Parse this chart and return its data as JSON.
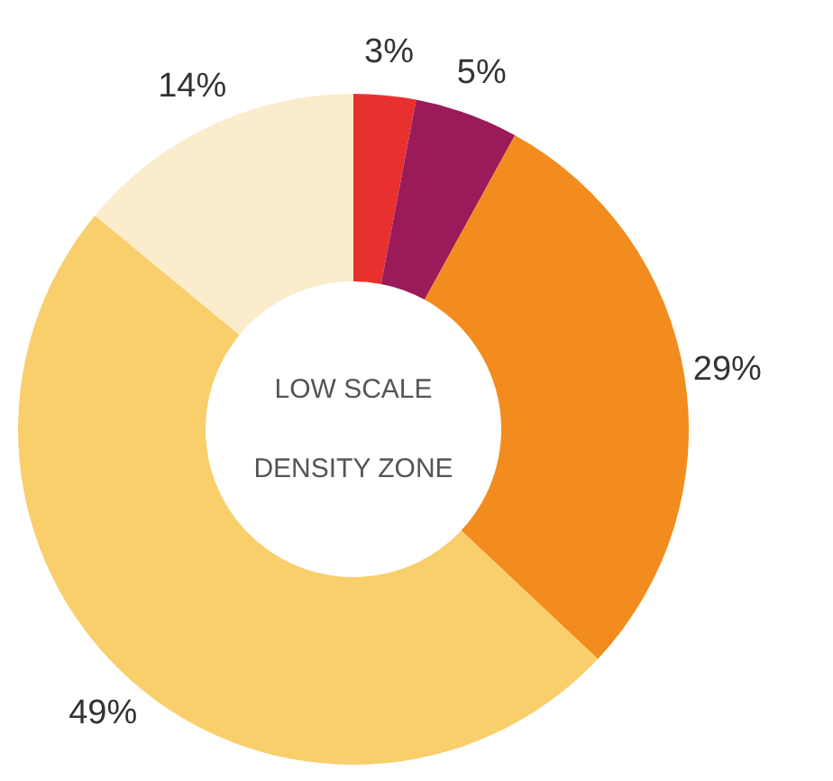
{
  "chart_data": {
    "type": "donut",
    "title": "LOW SCALE DENSITY ZONE",
    "categories": [
      null,
      null,
      null,
      null,
      null
    ],
    "values": [
      3,
      5,
      29,
      49,
      14
    ],
    "colors": [
      "#e8312f",
      "#9b1b5a",
      "#f28c1e",
      "#f9cf6b",
      "#fbeccb"
    ],
    "value_labels": [
      "3%",
      "5%",
      "29%",
      "49%",
      "14%"
    ]
  }
}
